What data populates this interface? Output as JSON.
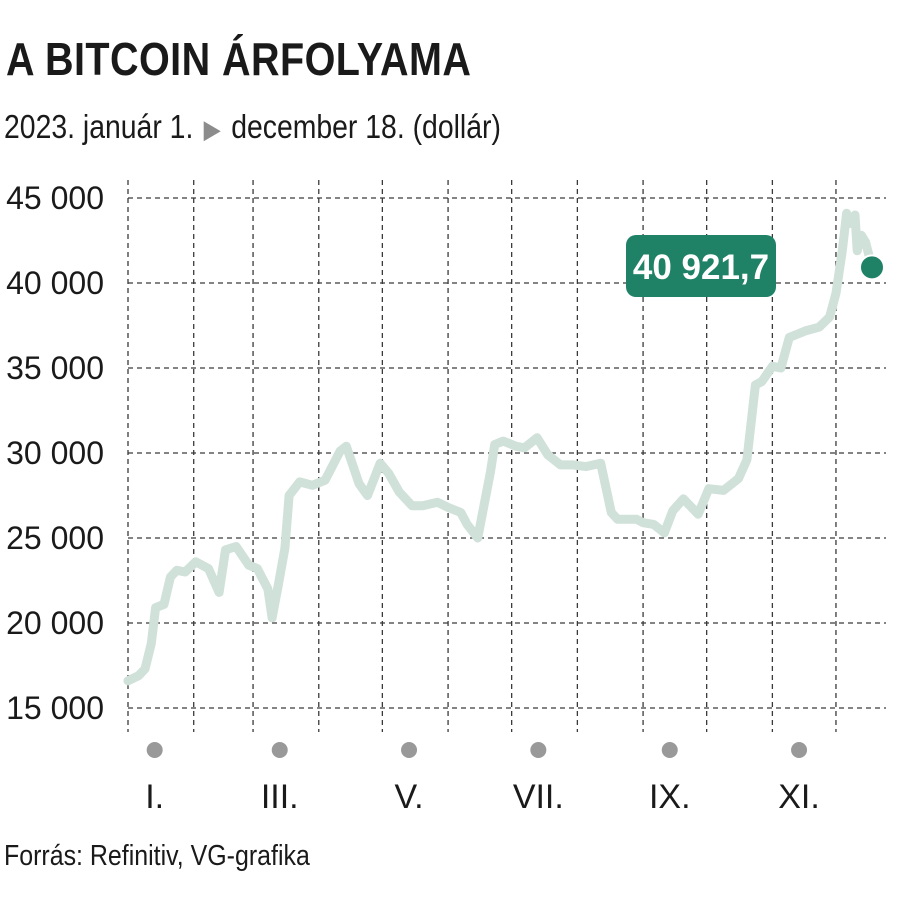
{
  "header": {
    "title": "A BITCOIN ÁRFOLYAMA",
    "subtitle_start": "2023. január 1.",
    "subtitle_end": "december 18. (dollár)",
    "arrow_icon": "triangle-right-icon"
  },
  "footer": {
    "source": "Forrás: Refinitiv, VG-grafika"
  },
  "colors": {
    "line": "#cfe1d8",
    "accent": "#1f8266",
    "grid": "#3a3a3a",
    "marker": "#999999",
    "text": "#1a1a1a"
  },
  "chart_data": {
    "type": "line",
    "title": "A BITCOIN ÁRFOLYAMA",
    "subtitle": "2023. január 1. ▶ december 18. (dollár)",
    "xlabel": "",
    "ylabel": "",
    "x_range": [
      "2023-01-01",
      "2023-12-18"
    ],
    "ylim": [
      15000,
      45000
    ],
    "y_ticks": [
      15000,
      20000,
      25000,
      30000,
      35000,
      40000,
      45000
    ],
    "y_tick_labels": [
      "15 000",
      "20 000",
      "25 000",
      "30 000",
      "35 000",
      "40 000",
      "45 000"
    ],
    "x_tick_labels": [
      "I.",
      "III.",
      "V.",
      "VII.",
      "IX.",
      "XI."
    ],
    "grid": true,
    "series": [
      {
        "x": [
          "2023-01-01",
          "2023-01-06",
          "2023-01-09",
          "2023-01-12",
          "2023-01-14",
          "2023-01-18",
          "2023-01-21",
          "2023-01-24",
          "2023-01-28",
          "2023-02-02",
          "2023-02-08",
          "2023-02-13",
          "2023-02-16",
          "2023-02-21",
          "2023-02-27",
          "2023-03-03",
          "2023-03-08",
          "2023-03-10",
          "2023-03-13",
          "2023-03-16",
          "2023-03-18",
          "2023-03-23",
          "2023-03-29",
          "2023-04-04",
          "2023-04-11",
          "2023-04-14",
          "2023-04-20",
          "2023-04-24",
          "2023-04-30",
          "2023-05-04",
          "2023-05-09",
          "2023-05-15",
          "2023-05-20",
          "2023-05-27",
          "2023-06-01",
          "2023-06-07",
          "2023-06-10",
          "2023-06-15",
          "2023-06-21",
          "2023-06-23",
          "2023-06-27",
          "2023-07-03",
          "2023-07-07",
          "2023-07-13",
          "2023-07-18",
          "2023-07-24",
          "2023-07-30",
          "2023-08-05",
          "2023-08-12",
          "2023-08-17",
          "2023-08-20",
          "2023-08-25",
          "2023-08-29",
          "2023-09-01",
          "2023-09-06",
          "2023-09-11",
          "2023-09-15",
          "2023-09-20",
          "2023-09-27",
          "2023-10-02",
          "2023-10-09",
          "2023-10-16",
          "2023-10-20",
          "2023-10-24",
          "2023-10-27",
          "2023-11-01",
          "2023-11-05",
          "2023-11-09",
          "2023-11-13",
          "2023-11-17",
          "2023-11-23",
          "2023-11-28",
          "2023-12-01",
          "2023-12-04",
          "2023-12-06",
          "2023-12-08",
          "2023-12-10",
          "2023-12-11",
          "2023-12-13",
          "2023-12-15",
          "2023-12-18"
        ],
        "values": [
          16600,
          16900,
          17300,
          18800,
          20900,
          21100,
          22700,
          23100,
          23000,
          23600,
          23200,
          21800,
          24300,
          24500,
          23400,
          23200,
          22000,
          20300,
          22300,
          24400,
          27500,
          28300,
          28100,
          28400,
          30100,
          30400,
          28200,
          27500,
          29400,
          28800,
          27700,
          26900,
          26900,
          27100,
          26800,
          26500,
          25800,
          25000,
          28900,
          30500,
          30700,
          30400,
          30300,
          30900,
          29900,
          29300,
          29300,
          29200,
          29400,
          26500,
          26100,
          26100,
          26100,
          25900,
          25800,
          25300,
          26600,
          27300,
          26400,
          27900,
          27800,
          28500,
          29600,
          34000,
          34200,
          35100,
          35000,
          36800,
          37000,
          37200,
          37400,
          38000,
          39400,
          41900,
          44100,
          43500,
          44000,
          41900,
          42800,
          42400,
          40921.7
        ]
      }
    ],
    "last_value": 40921.7,
    "last_value_label": "40 921,7"
  }
}
